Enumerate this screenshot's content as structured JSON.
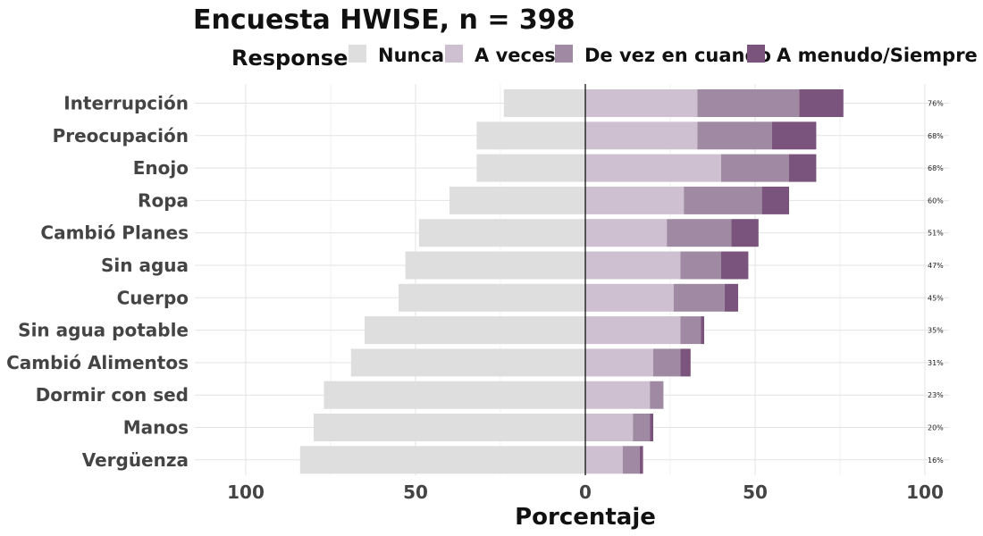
{
  "chart_data": {
    "type": "bar",
    "orientation": "horizontal-diverging",
    "title": "Encuesta HWISE, n = 398",
    "legend": {
      "title": "Response",
      "placement": "top",
      "entries": [
        "Nunca",
        "A veces",
        "De vez en cuando",
        "A menudo/Siempre"
      ]
    },
    "colors": {
      "Nunca": "#dedede",
      "A veces": "#cec0d0",
      "De vez en cuando": "#a08aa3",
      "A menudo/Siempre": "#7a547c"
    },
    "xlabel": "Porcentaje",
    "ylabel": "",
    "xlim": [
      -100,
      100
    ],
    "xticks": [
      -100,
      -50,
      0,
      50,
      100
    ],
    "xtick_labels": [
      "100",
      "50",
      "0",
      "50",
      "100"
    ],
    "grid": true,
    "categories": [
      "Interrupción",
      "Preocupación",
      "Enojo",
      "Ropa",
      "Cambió Planes",
      "Sin agua",
      "Cuerpo",
      "Sin agua potable",
      "Cambió Alimentos",
      "Dormir con sed",
      "Manos",
      "Vergüenza"
    ],
    "series": [
      {
        "name": "Nunca",
        "values": [
          24,
          32,
          32,
          40,
          49,
          53,
          55,
          65,
          69,
          77,
          80,
          84
        ]
      },
      {
        "name": "A veces",
        "values": [
          33,
          33,
          40,
          29,
          24,
          28,
          26,
          28,
          20,
          19,
          14,
          11
        ]
      },
      {
        "name": "De vez en cuando",
        "values": [
          30,
          22,
          20,
          23,
          19,
          12,
          15,
          6,
          8,
          4,
          5,
          5
        ]
      },
      {
        "name": "A menudo/Siempre",
        "values": [
          13,
          13,
          8,
          8,
          8,
          8,
          4,
          1,
          3,
          0,
          1,
          1
        ]
      }
    ],
    "right_labels": [
      "76%",
      "68%",
      "68%",
      "60%",
      "51%",
      "47%",
      "45%",
      "35%",
      "31%",
      "23%",
      "20%",
      "16%"
    ]
  }
}
